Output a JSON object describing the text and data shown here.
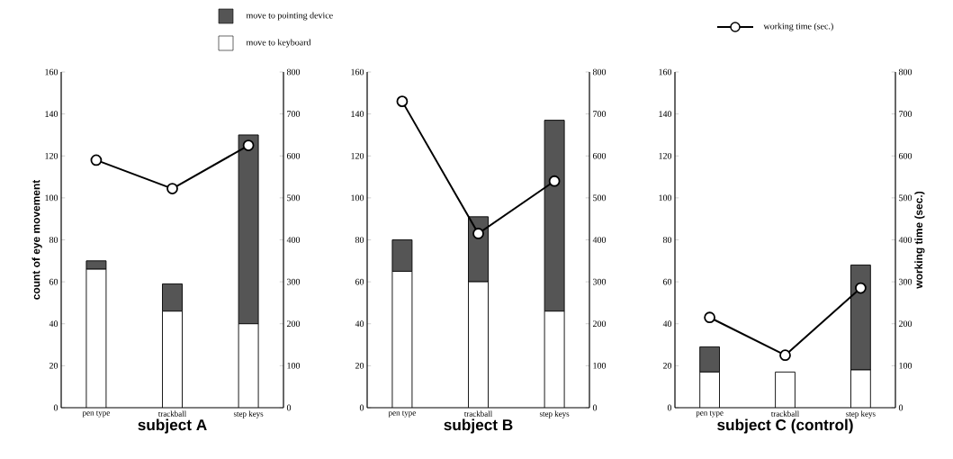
{
  "chart_data": [
    {
      "type": "bar",
      "stacked": true,
      "title": "subject A",
      "ylabel": "count of eye movement",
      "categories": [
        "pen type",
        "trackball",
        "step keys"
      ],
      "ylim": [
        0,
        160
      ],
      "yticks": [
        0,
        20,
        40,
        60,
        80,
        100,
        120,
        140,
        160
      ],
      "y2lim": [
        0,
        800
      ],
      "y2ticks": [
        0,
        100,
        200,
        300,
        400,
        500,
        600,
        700,
        800
      ],
      "legend": "top",
      "marker": "circle",
      "series": [
        {
          "name": "move to keyboard",
          "color": "#ffffff",
          "values": [
            66,
            46,
            40
          ]
        },
        {
          "name": "move to pointing device",
          "color": "#555555",
          "values": [
            4,
            13,
            90
          ]
        },
        {
          "name": "working time (sec.)",
          "type": "line",
          "axis": "y2",
          "color": "#000000",
          "values": [
            590,
            522,
            625
          ]
        }
      ]
    },
    {
      "type": "bar",
      "stacked": true,
      "title": "subject B",
      "categories": [
        "pen type",
        "trackball",
        "step keys"
      ],
      "ylim": [
        0,
        160
      ],
      "yticks": [
        0,
        20,
        40,
        60,
        80,
        100,
        120,
        140,
        160
      ],
      "y2lim": [
        0,
        800
      ],
      "y2ticks": [
        0,
        100,
        200,
        300,
        400,
        500,
        600,
        700,
        800
      ],
      "marker": "circle",
      "series": [
        {
          "color": "#ffffff",
          "values": [
            65,
            60,
            46
          ]
        },
        {
          "color": "#555555",
          "values": [
            15,
            31,
            91
          ]
        },
        {
          "type": "line",
          "axis": "y2",
          "color": "#000000",
          "values": [
            730,
            415,
            540
          ]
        }
      ]
    },
    {
      "type": "bar",
      "stacked": true,
      "title": "subject C (control)",
      "y2label": "working time (sec.)",
      "categories": [
        "pen type",
        "trackball",
        "step keys"
      ],
      "ylim": [
        0,
        160
      ],
      "yticks": [
        0,
        20,
        40,
        60,
        80,
        100,
        120,
        140,
        160
      ],
      "y2lim": [
        0,
        800
      ],
      "y2ticks": [
        0,
        100,
        200,
        300,
        400,
        500,
        600,
        700,
        800
      ],
      "marker": "circle",
      "series": [
        {
          "color": "#ffffff",
          "values": [
            17,
            17,
            18
          ]
        },
        {
          "color": "#555555",
          "values": [
            12,
            null,
            50
          ]
        },
        {
          "type": "line",
          "axis": "y2",
          "color": "#000000",
          "values": [
            215,
            125,
            285
          ]
        }
      ]
    }
  ]
}
